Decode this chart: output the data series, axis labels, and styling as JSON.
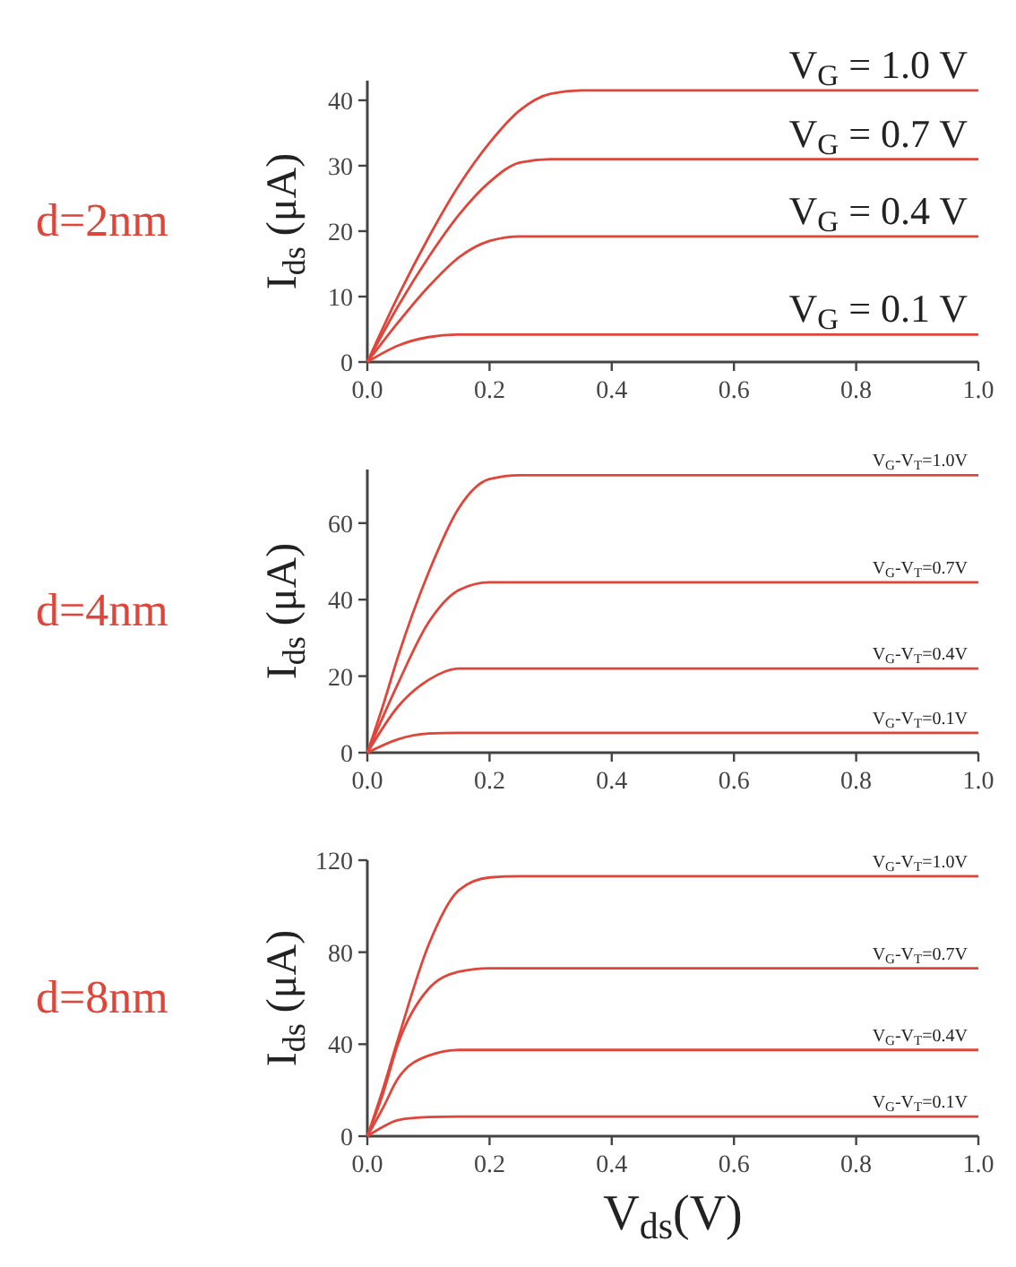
{
  "chart_data": [
    {
      "type": "line",
      "title": "d=2nm",
      "ylabel": "I$_{ds}$ (μA)",
      "xlim": [
        0,
        1
      ],
      "xticks": [
        {
          "value": 0,
          "label": "0.0"
        },
        {
          "value": 0.2,
          "label": "0.2"
        },
        {
          "value": 0.4,
          "label": "0.4"
        },
        {
          "value": 0.6,
          "label": "0.6"
        },
        {
          "value": 0.8,
          "label": "0.8"
        },
        {
          "value": 1,
          "label": "1.0"
        }
      ],
      "ylim": [
        0,
        43
      ],
      "yticks": [
        0,
        10,
        20,
        30,
        40
      ],
      "series": [
        {
          "name": "V$_{G}$ = 1.0 V",
          "color": "#e0453a",
          "x": [
            0,
            0.05,
            0.1,
            0.15,
            0.2,
            0.25,
            0.3,
            0.35,
            1
          ],
          "values": [
            0,
            10,
            19,
            27,
            33.5,
            38.5,
            41,
            41.5,
            41.5
          ]
        },
        {
          "name": "V$_{G}$ = 0.7 V",
          "color": "#e0453a",
          "x": [
            0,
            0.05,
            0.1,
            0.15,
            0.2,
            0.25,
            0.3,
            1
          ],
          "values": [
            0,
            8.5,
            16,
            22.5,
            27.5,
            30.5,
            31,
            31
          ]
        },
        {
          "name": "V$_{G}$ = 0.4 V",
          "color": "#e0453a",
          "x": [
            0,
            0.05,
            0.1,
            0.15,
            0.2,
            0.25,
            1
          ],
          "values": [
            0,
            6,
            11.5,
            16,
            18.5,
            19.2,
            19.2
          ]
        },
        {
          "name": "V$_{G}$ = 0.1 V",
          "color": "#e0453a",
          "x": [
            0,
            0.05,
            0.1,
            0.15,
            1
          ],
          "values": [
            0,
            2.5,
            3.8,
            4.2,
            4.2
          ]
        }
      ]
    },
    {
      "type": "line",
      "title": "d=4nm",
      "ylabel": "I$_{ds}$ (μA)",
      "xlim": [
        0,
        1
      ],
      "xticks": [
        {
          "value": 0,
          "label": "0.0"
        },
        {
          "value": 0.2,
          "label": "0.2"
        },
        {
          "value": 0.4,
          "label": "0.4"
        },
        {
          "value": 0.6,
          "label": "0.6"
        },
        {
          "value": 0.8,
          "label": "0.8"
        },
        {
          "value": 1,
          "label": "1.0"
        }
      ],
      "ylim": [
        0,
        74
      ],
      "yticks": [
        0,
        20,
        40,
        60
      ],
      "series": [
        {
          "name": "V$_{G}$-V$_{T}$=1.0V",
          "color": "#e0453a",
          "x": [
            0,
            0.025,
            0.05,
            0.1,
            0.15,
            0.2,
            0.25,
            1
          ],
          "values": [
            0,
            12,
            25,
            47,
            64,
            71.5,
            72.5,
            72.5
          ]
        },
        {
          "name": "V$_{G}$-V$_{T}$=0.7V",
          "color": "#e0453a",
          "x": [
            0,
            0.05,
            0.1,
            0.15,
            0.2,
            1
          ],
          "values": [
            0,
            18,
            34,
            42.5,
            44.5,
            44.5
          ]
        },
        {
          "name": "V$_{G}$-V$_{T}$=0.4V",
          "color": "#e0453a",
          "x": [
            0,
            0.05,
            0.1,
            0.15,
            1
          ],
          "values": [
            0,
            12,
            19,
            22,
            22
          ]
        },
        {
          "name": "V$_{G}$-V$_{T}$=0.1V",
          "color": "#e0453a",
          "x": [
            0,
            0.05,
            0.1,
            0.15,
            1
          ],
          "values": [
            0,
            3.5,
            5,
            5.2,
            5.2
          ]
        }
      ]
    },
    {
      "type": "line",
      "title": "d=8nm",
      "xlabel": "V$_{ds}$(V)",
      "ylabel": "I$_{ds}$ (μA)",
      "xlim": [
        0,
        1
      ],
      "xticks": [
        {
          "value": 0,
          "label": "0.0"
        },
        {
          "value": 0.2,
          "label": "0.2"
        },
        {
          "value": 0.4,
          "label": "0.4"
        },
        {
          "value": 0.6,
          "label": "0.6"
        },
        {
          "value": 0.8,
          "label": "0.8"
        },
        {
          "value": 1,
          "label": "1.0"
        }
      ],
      "ylim": [
        0,
        120
      ],
      "yticks": [
        0,
        40,
        80,
        120
      ],
      "series": [
        {
          "name": "V$_{G}$-V$_{T}$=1.0V",
          "color": "#e0453a",
          "x": [
            0,
            0.025,
            0.05,
            0.1,
            0.15,
            0.2,
            0.25,
            1
          ],
          "values": [
            0,
            20,
            42,
            83,
            107,
            112.5,
            113,
            113
          ]
        },
        {
          "name": "V$_{G}$-V$_{T}$=0.7V",
          "color": "#e0453a",
          "x": [
            0,
            0.025,
            0.05,
            0.1,
            0.15,
            0.2,
            1
          ],
          "values": [
            0,
            18,
            40,
            64,
            71.5,
            73,
            73
          ]
        },
        {
          "name": "V$_{G}$-V$_{T}$=0.4V",
          "color": "#e0453a",
          "x": [
            0,
            0.025,
            0.05,
            0.1,
            0.15,
            1
          ],
          "values": [
            0,
            12,
            25,
            35,
            37.5,
            37.5
          ]
        },
        {
          "name": "V$_{G}$-V$_{T}$=0.1V",
          "color": "#e0453a",
          "x": [
            0,
            0.025,
            0.05,
            0.1,
            0.15,
            1
          ],
          "values": [
            0,
            4,
            7,
            8.3,
            8.5,
            8.5
          ]
        }
      ]
    }
  ]
}
